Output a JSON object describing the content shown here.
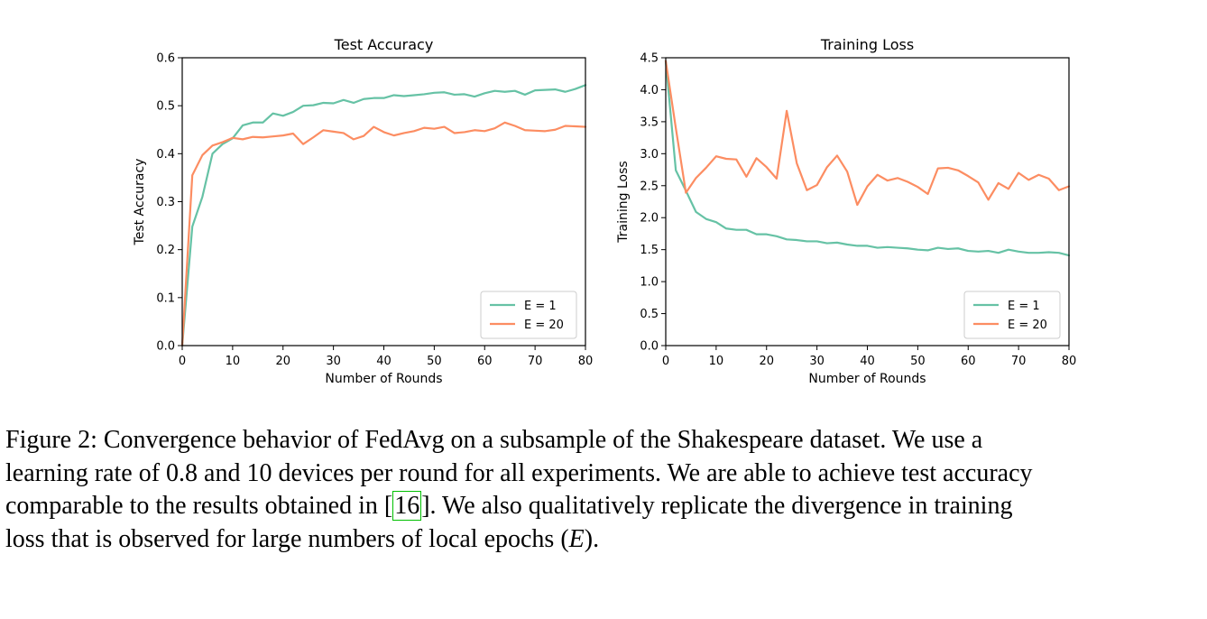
{
  "chart_data": [
    {
      "type": "line",
      "title": "Test Accuracy",
      "xlabel": "Number of Rounds",
      "ylabel": "Test Accuracy",
      "xlim": [
        0,
        80
      ],
      "ylim": [
        0,
        0.6
      ],
      "xticks": [
        0,
        10,
        20,
        30,
        40,
        50,
        60,
        70,
        80
      ],
      "xtick_labels": [
        "0",
        "10",
        "20",
        "30",
        "40",
        "50",
        "60",
        "70",
        "80"
      ],
      "yticks": [
        0,
        0.1,
        0.2,
        0.3,
        0.4,
        0.5,
        0.6
      ],
      "ytick_labels": [
        "0.0",
        "0.1",
        "0.2",
        "0.3",
        "0.4",
        "0.5",
        "0.6"
      ],
      "grid": false,
      "legend": "lower-right",
      "series": [
        {
          "name": "E = 1",
          "color": "#66c2a5",
          "x": [
            0,
            2,
            4,
            6,
            8,
            10,
            12,
            14,
            16,
            18,
            20,
            22,
            24,
            26,
            28,
            30,
            32,
            34,
            36,
            38,
            40,
            42,
            44,
            46,
            48,
            50,
            52,
            54,
            56,
            58,
            60,
            62,
            64,
            66,
            68,
            70,
            72,
            74,
            76,
            78,
            80
          ],
          "y": [
            0.0,
            0.248,
            0.31,
            0.4,
            0.42,
            0.432,
            0.459,
            0.465,
            0.465,
            0.484,
            0.479,
            0.487,
            0.5,
            0.501,
            0.506,
            0.505,
            0.512,
            0.506,
            0.514,
            0.516,
            0.516,
            0.522,
            0.52,
            0.522,
            0.524,
            0.527,
            0.528,
            0.523,
            0.524,
            0.519,
            0.526,
            0.531,
            0.529,
            0.531,
            0.523,
            0.532,
            0.533,
            0.534,
            0.529,
            0.535,
            0.543
          ]
        },
        {
          "name": "E = 20",
          "color": "#fc8d62",
          "x": [
            0,
            2,
            4,
            6,
            8,
            10,
            12,
            14,
            16,
            18,
            20,
            22,
            24,
            26,
            28,
            30,
            32,
            34,
            36,
            38,
            40,
            42,
            44,
            46,
            48,
            50,
            52,
            54,
            56,
            58,
            60,
            62,
            64,
            66,
            68,
            70,
            72,
            74,
            76,
            78,
            80
          ],
          "y": [
            0.0,
            0.355,
            0.397,
            0.417,
            0.424,
            0.433,
            0.43,
            0.435,
            0.434,
            0.436,
            0.438,
            0.442,
            0.42,
            0.434,
            0.449,
            0.446,
            0.443,
            0.43,
            0.437,
            0.456,
            0.445,
            0.438,
            0.443,
            0.447,
            0.454,
            0.452,
            0.456,
            0.443,
            0.445,
            0.449,
            0.447,
            0.453,
            0.465,
            0.458,
            0.449,
            0.448,
            0.447,
            0.45,
            0.458,
            0.457,
            0.456
          ]
        }
      ]
    },
    {
      "type": "line",
      "title": "Training Loss",
      "xlabel": "Number of Rounds",
      "ylabel": "Training Loss",
      "xlim": [
        0,
        80
      ],
      "ylim": [
        0,
        4.5
      ],
      "xticks": [
        0,
        10,
        20,
        30,
        40,
        50,
        60,
        70,
        80
      ],
      "xtick_labels": [
        "0",
        "10",
        "20",
        "30",
        "40",
        "50",
        "60",
        "70",
        "80"
      ],
      "yticks": [
        0,
        0.5,
        1.0,
        1.5,
        2.0,
        2.5,
        3.0,
        3.5,
        4.0,
        4.5
      ],
      "ytick_labels": [
        "0.0",
        "0.5",
        "1.0",
        "1.5",
        "2.0",
        "2.5",
        "3.0",
        "3.5",
        "4.0",
        "4.5"
      ],
      "grid": false,
      "legend": "lower-right",
      "series": [
        {
          "name": "E = 1",
          "color": "#66c2a5",
          "x": [
            0,
            2,
            4,
            6,
            8,
            10,
            12,
            14,
            16,
            18,
            20,
            22,
            24,
            26,
            28,
            30,
            32,
            34,
            36,
            38,
            40,
            42,
            44,
            46,
            48,
            50,
            52,
            54,
            56,
            58,
            60,
            62,
            64,
            66,
            68,
            70,
            72,
            74,
            76,
            78,
            80
          ],
          "y": [
            4.45,
            2.74,
            2.42,
            2.09,
            1.98,
            1.93,
            1.83,
            1.81,
            1.81,
            1.74,
            1.74,
            1.71,
            1.66,
            1.65,
            1.63,
            1.63,
            1.6,
            1.61,
            1.58,
            1.56,
            1.56,
            1.53,
            1.54,
            1.53,
            1.52,
            1.5,
            1.49,
            1.53,
            1.51,
            1.52,
            1.48,
            1.47,
            1.48,
            1.45,
            1.5,
            1.47,
            1.45,
            1.45,
            1.46,
            1.45,
            1.41
          ]
        },
        {
          "name": "E = 20",
          "color": "#fc8d62",
          "x": [
            0,
            2,
            4,
            6,
            8,
            10,
            12,
            14,
            16,
            18,
            20,
            22,
            24,
            26,
            28,
            30,
            32,
            34,
            36,
            38,
            40,
            42,
            44,
            46,
            48,
            50,
            52,
            54,
            56,
            58,
            60,
            62,
            64,
            66,
            68,
            70,
            72,
            74,
            76,
            78,
            80
          ],
          "y": [
            4.45,
            3.4,
            2.39,
            2.62,
            2.78,
            2.96,
            2.92,
            2.91,
            2.64,
            2.93,
            2.79,
            2.61,
            3.67,
            2.85,
            2.43,
            2.51,
            2.79,
            2.97,
            2.72,
            2.2,
            2.49,
            2.67,
            2.58,
            2.62,
            2.56,
            2.48,
            2.37,
            2.77,
            2.78,
            2.74,
            2.65,
            2.55,
            2.28,
            2.54,
            2.45,
            2.7,
            2.59,
            2.67,
            2.61,
            2.43,
            2.49
          ]
        }
      ]
    }
  ],
  "caption": {
    "lines": [
      "Figure 2: Convergence behavior of FedAvg on a subsample of the Shakespeare dataset. We use a",
      "learning rate of 0.8 and 10 devices per round for all experiments. We are able to achieve test accuracy",
      [
        "comparable to the results obtained in [",
        "16",
        "]. We also qualitatively replicate the divergence in training"
      ],
      [
        "loss that is observed for large numbers of local epochs (",
        "E",
        ")."
      ]
    ]
  }
}
